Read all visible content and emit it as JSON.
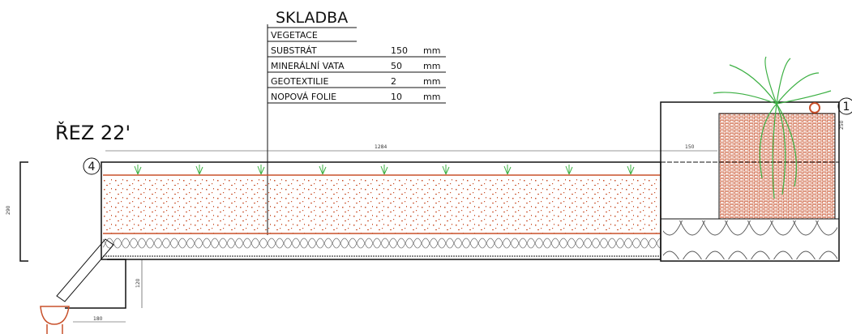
{
  "drawing": {
    "heading": "SKLADBA",
    "layers": [
      {
        "name": "VEGETACE"
      },
      {
        "name": "SUBSTRÁT",
        "thickness": 150,
        "unit": "mm"
      },
      {
        "name": "MINERÁLNÍ VATA",
        "thickness": 50,
        "unit": "mm"
      },
      {
        "name": "GEOTEXTILIE",
        "thickness": 2,
        "unit": "mm"
      },
      {
        "name": "NOPOVÁ FOLIE",
        "thickness": 10,
        "unit": "mm"
      }
    ],
    "section_label": "ŘEZ 22'",
    "markers": [
      "4",
      "1"
    ],
    "dimensions": [
      "1284",
      "150",
      "290",
      "120",
      "180",
      "250"
    ]
  }
}
